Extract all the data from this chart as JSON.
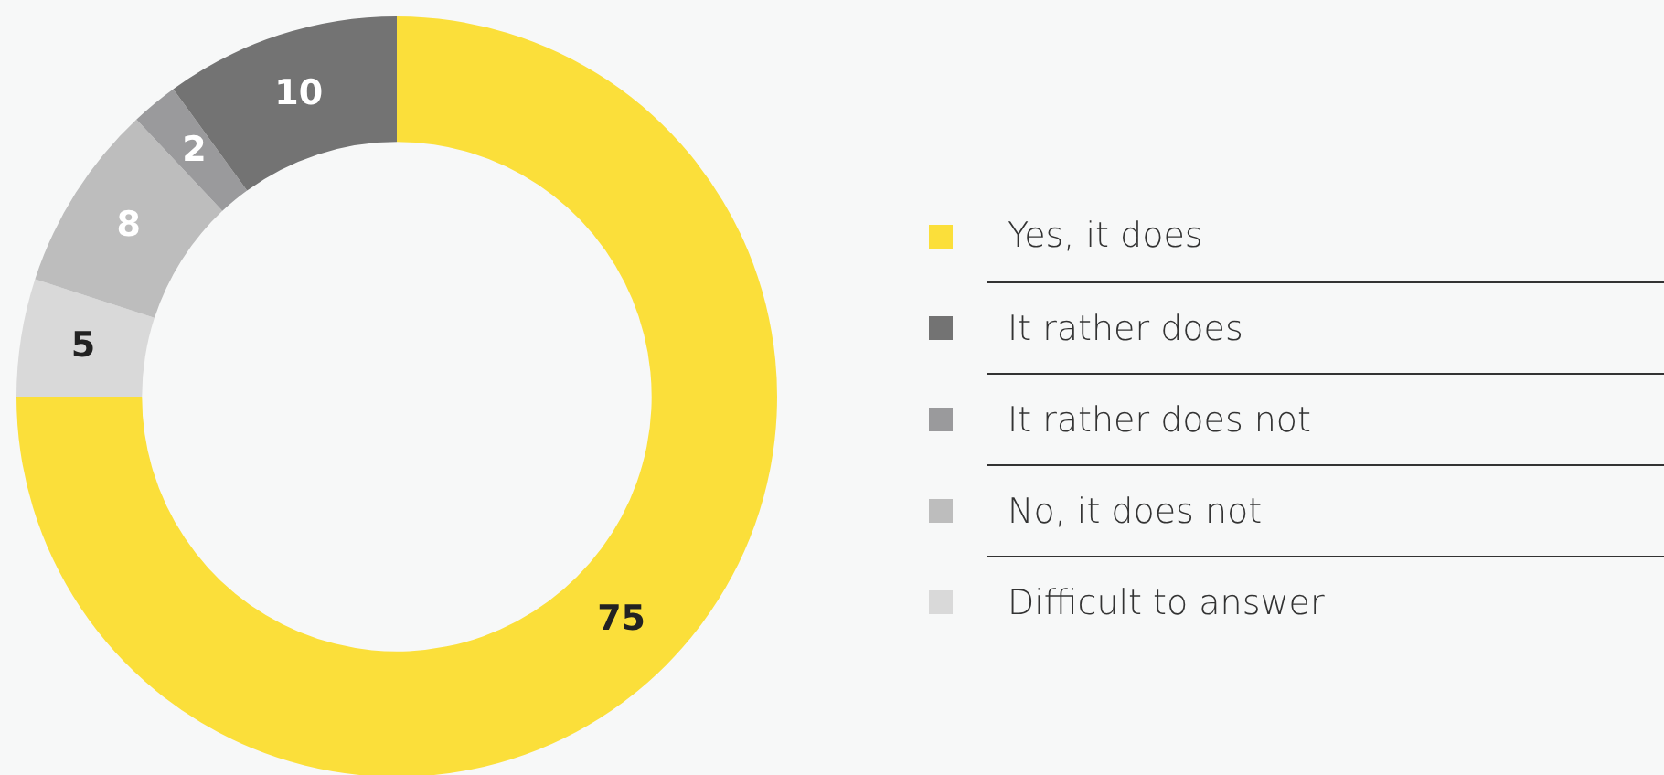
{
  "chart_data": {
    "type": "donut",
    "categories": [
      "Yes, it does",
      "It rather does",
      "It rather does not",
      "No, it does not",
      "Difficult to answer"
    ],
    "values": [
      75,
      10,
      2,
      8,
      5
    ],
    "colors": [
      "#fbdf3a",
      "#737373",
      "#9a9a9c",
      "#bdbdbd",
      "#d9d9d9"
    ],
    "data_labels": true,
    "legend": "right"
  }
}
